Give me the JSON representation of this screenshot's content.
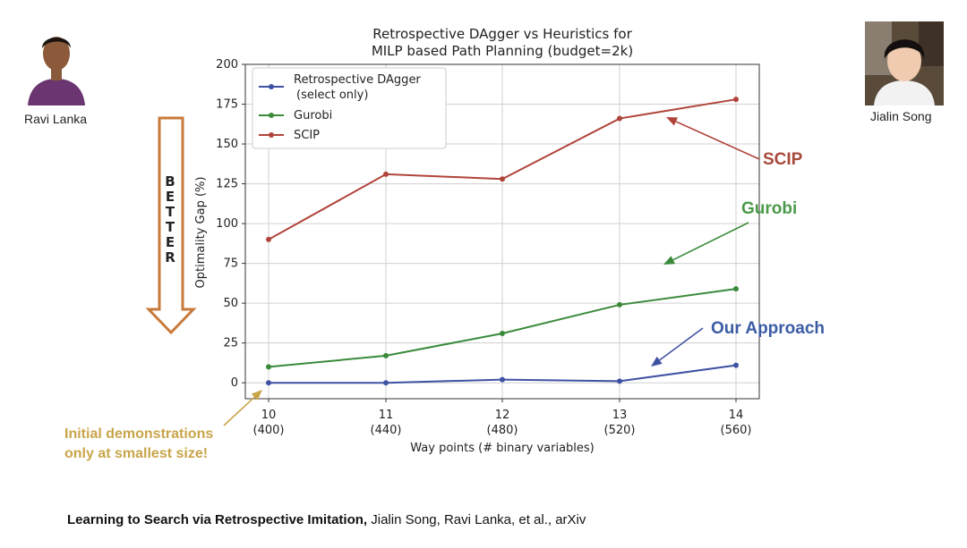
{
  "people": [
    {
      "name": "Ravi Lanka"
    },
    {
      "name": "Jialin Song"
    }
  ],
  "better_label": "BETTER",
  "callouts": {
    "scip": "SCIP",
    "gurobi": "Gurobi",
    "ours": "Our Approach"
  },
  "note_lines": [
    "Initial demonstrations",
    "only at smallest size!"
  ],
  "citation": {
    "bold": "Learning to Search via Retrospective Imitation,",
    "rest": " Jialin Song, Ravi Lanka, et al., arXiv"
  },
  "colors": {
    "dagger": "#3f51a3",
    "gurobi": "#3a8a3a",
    "scip": "#b0443a",
    "callout_scip": "#a8493c",
    "callout_gurobi": "#4a9a4a",
    "callout_ours": "#3b5ba5",
    "note": "#c9a54a",
    "better_arrow": "#c87a3a"
  },
  "chart_data": {
    "type": "line",
    "title_lines": [
      "Retrospective DAgger vs Heuristics for",
      "MILP based Path Planning (budget=2k)"
    ],
    "xlabel": "Way points (# binary variables)",
    "ylabel": "Optimality Gap (%)",
    "categories": [
      [
        "10",
        "(400)"
      ],
      [
        "11",
        "(440)"
      ],
      [
        "12",
        "(480)"
      ],
      [
        "13",
        "(520)"
      ],
      [
        "14",
        "(560)"
      ]
    ],
    "yticks": [
      0,
      25,
      50,
      75,
      100,
      125,
      150,
      175,
      200
    ],
    "ylim": [
      -10,
      200
    ],
    "grid": true,
    "legend_position": "upper-left",
    "series": [
      {
        "name": "Retrospective DAgger",
        "name2": "(select only)",
        "color": "#3f51a3",
        "values": [
          0,
          0,
          2,
          1,
          11
        ]
      },
      {
        "name": "Gurobi",
        "color": "#3a8a3a",
        "values": [
          10,
          17,
          31,
          49,
          59
        ]
      },
      {
        "name": "SCIP",
        "color": "#b0443a",
        "values": [
          90,
          131,
          128,
          166,
          178
        ]
      }
    ]
  }
}
